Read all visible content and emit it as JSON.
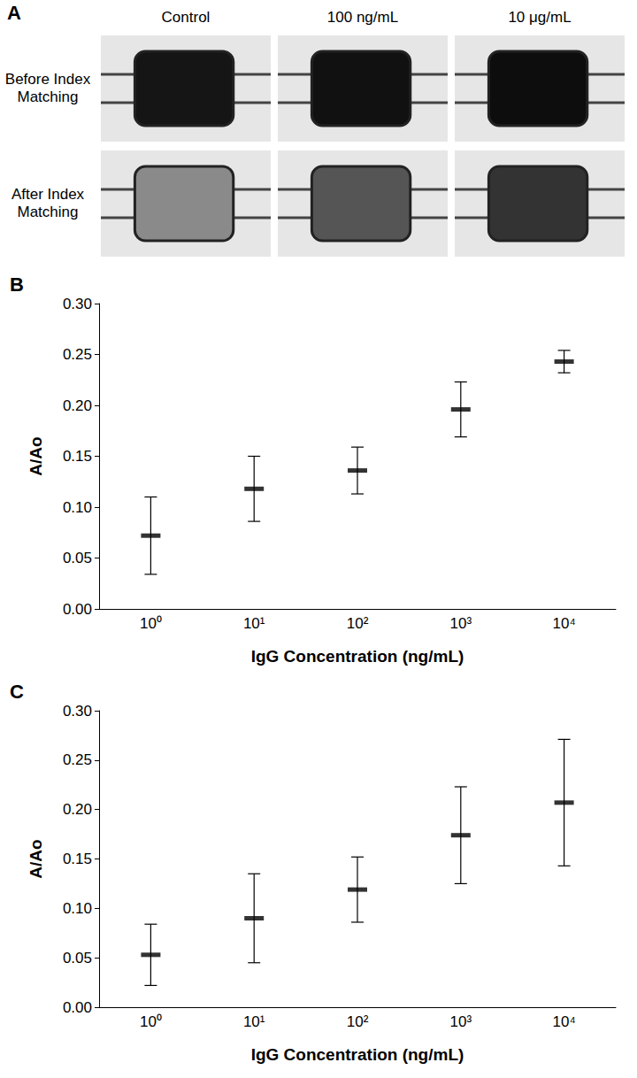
{
  "panel_a": {
    "panel_label": "A",
    "columns": [
      "Control",
      "100 ng/mL",
      "10 μg/mL"
    ],
    "rows": [
      "Before Index Matching",
      "After Index Matching"
    ]
  },
  "chart_data": [
    {
      "type": "scatter",
      "panel_label": "B",
      "categories": [
        "10⁰",
        "10¹",
        "10²",
        "10³",
        "10⁴"
      ],
      "values": [
        0.072,
        0.118,
        0.136,
        0.196,
        0.243
      ],
      "errors": [
        0.038,
        0.032,
        0.023,
        0.027,
        0.011
      ],
      "xlabel": "IgG Concentration (ng/mL)",
      "ylabel": "A/Ao",
      "ylim": [
        0,
        0.3
      ],
      "yticks": [
        {
          "value": 0,
          "label": "0.00"
        },
        {
          "value": 0.05,
          "label": "0.05"
        },
        {
          "value": 0.1,
          "label": "0.10"
        },
        {
          "value": 0.15,
          "label": "0.15"
        },
        {
          "value": 0.2,
          "label": "0.20"
        },
        {
          "value": 0.25,
          "label": "0.25"
        },
        {
          "value": 0.3,
          "label": "0.30"
        }
      ],
      "grid": false,
      "marker": "dash",
      "color": "#000000"
    },
    {
      "type": "scatter",
      "panel_label": "C",
      "categories": [
        "10⁰",
        "10¹",
        "10²",
        "10³",
        "10⁴"
      ],
      "values": [
        0.053,
        0.09,
        0.119,
        0.174,
        0.207
      ],
      "errors": [
        0.031,
        0.045,
        0.033,
        0.049,
        0.064
      ],
      "xlabel": "IgG Concentration (ng/mL)",
      "ylabel": "A/Ao",
      "ylim": [
        0,
        0.3
      ],
      "yticks": [
        {
          "value": 0,
          "label": "0.00"
        },
        {
          "value": 0.05,
          "label": "0.05"
        },
        {
          "value": 0.1,
          "label": "0.10"
        },
        {
          "value": 0.15,
          "label": "0.15"
        },
        {
          "value": 0.2,
          "label": "0.20"
        },
        {
          "value": 0.25,
          "label": "0.25"
        },
        {
          "value": 0.3,
          "label": "0.30"
        }
      ],
      "grid": false,
      "marker": "dash",
      "color": "#000000"
    }
  ]
}
